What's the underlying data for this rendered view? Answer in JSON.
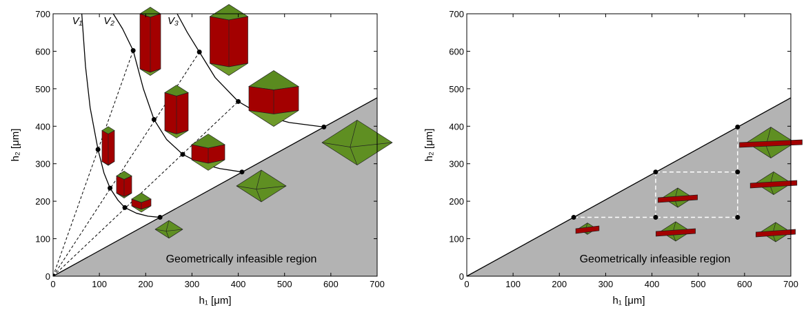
{
  "chart_data": [
    {
      "type": "line",
      "xlabel": "h₁ [μm]",
      "ylabel": "h₂ [μm]",
      "xlim": [
        0,
        700
      ],
      "ylim": [
        0,
        700
      ],
      "xticks": [
        0,
        100,
        200,
        300,
        400,
        500,
        600,
        700
      ],
      "yticks": [
        0,
        100,
        200,
        300,
        400,
        500,
        600,
        700
      ],
      "region_label": "Geometrically infeasible region",
      "boundary": {
        "x": [
          0,
          700
        ],
        "y": [
          0,
          476
        ]
      },
      "series": [
        {
          "name": "V₁",
          "color": "#000000",
          "x": [
            62,
            70,
            80,
            97,
            110,
            123,
            140,
            155,
            180,
            205,
            231
          ],
          "y": [
            700,
            560,
            450,
            338,
            275,
            235,
            203,
            183,
            168,
            160,
            157
          ]
        },
        {
          "name": "V₂",
          "color": "#000000",
          "x": [
            130,
            150,
            173,
            195,
            218,
            245,
            280,
            320,
            360,
            408
          ],
          "y": [
            700,
            660,
            602,
            500,
            418,
            365,
            325,
            300,
            287,
            278
          ]
        },
        {
          "name": "V₃",
          "color": "#000000",
          "x": [
            268,
            290,
            316,
            350,
            400,
            450,
            510,
            585
          ],
          "y": [
            700,
            650,
            598,
            530,
            466,
            430,
            410,
            398
          ]
        }
      ],
      "rays": [
        {
          "x": [
            0,
            173
          ],
          "y": [
            0,
            602
          ]
        },
        {
          "x": [
            0,
            316
          ],
          "y": [
            0,
            598
          ]
        },
        {
          "x": [
            0,
            400
          ],
          "y": [
            0,
            466
          ]
        }
      ],
      "points": {
        "x": [
          97,
          123,
          155,
          231,
          173,
          218,
          280,
          408,
          316,
          400,
          585
        ],
        "y": [
          338,
          235,
          183,
          157,
          602,
          418,
          325,
          278,
          598,
          466,
          398
        ]
      }
    },
    {
      "type": "line",
      "xlabel": "h₁ [μm]",
      "ylabel": "h₂ [μm]",
      "xlim": [
        0,
        700
      ],
      "ylim": [
        0,
        700
      ],
      "xticks": [
        0,
        100,
        200,
        300,
        400,
        500,
        600,
        700
      ],
      "yticks": [
        0,
        100,
        200,
        300,
        400,
        500,
        600,
        700
      ],
      "region_label": "Geometrically infeasible region",
      "boundary": {
        "x": [
          0,
          700
        ],
        "y": [
          0,
          476
        ]
      },
      "dashed_lines": [
        {
          "x": [
            231,
            585
          ],
          "y": [
            157,
            157
          ]
        },
        {
          "x": [
            408,
            585
          ],
          "y": [
            278,
            278
          ]
        },
        {
          "x": [
            408,
            408
          ],
          "y": [
            157,
            278
          ]
        },
        {
          "x": [
            585,
            585
          ],
          "y": [
            157,
            398
          ]
        }
      ],
      "points": {
        "x": [
          231,
          408,
          585,
          408,
          585,
          585
        ],
        "y": [
          157,
          278,
          398,
          157,
          157,
          278
        ]
      }
    }
  ]
}
